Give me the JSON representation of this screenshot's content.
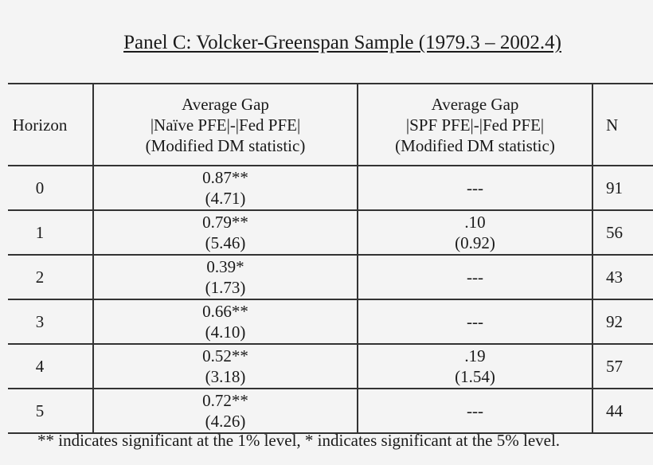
{
  "title": "Panel C:  Volcker-Greenspan Sample (1979.3 – 2002.4)",
  "headers": {
    "horizon": "Horizon",
    "col1": [
      "Average Gap",
      "|Naïve PFE|-|Fed PFE|",
      "(Modified DM statistic)"
    ],
    "col2": [
      "Average Gap",
      "|SPF PFE|-|Fed PFE|",
      "(Modified DM statistic)"
    ],
    "n": "N"
  },
  "rows": [
    {
      "horizon": "0",
      "naive": "0.87**",
      "naive_stat": "(4.71)",
      "spf": "---",
      "spf_stat": "",
      "n": "91"
    },
    {
      "horizon": "1",
      "naive": "0.79**",
      "naive_stat": "(5.46)",
      "spf": ".10",
      "spf_stat": "(0.92)",
      "n": "56"
    },
    {
      "horizon": "2",
      "naive": "0.39*",
      "naive_stat": "(1.73)",
      "spf": "---",
      "spf_stat": "",
      "n": "43"
    },
    {
      "horizon": "3",
      "naive": "0.66**",
      "naive_stat": "(4.10)",
      "spf": "---",
      "spf_stat": "",
      "n": "92"
    },
    {
      "horizon": "4",
      "naive": "0.52**",
      "naive_stat": "(3.18)",
      "spf": ".19",
      "spf_stat": "(1.54)",
      "n": "57"
    },
    {
      "horizon": "5",
      "naive": "0.72**",
      "naive_stat": "(4.26)",
      "spf": "---",
      "spf_stat": "",
      "n": "44"
    }
  ],
  "footnote": "** indicates significant at the 1% level, * indicates significant at the 5% level."
}
